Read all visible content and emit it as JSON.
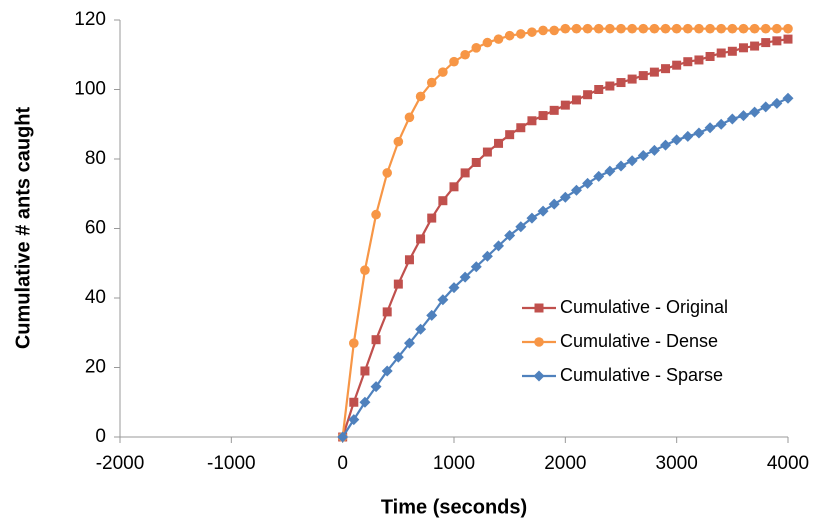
{
  "chart_data": {
    "type": "line",
    "x_label": "Time (seconds)",
    "y_label": "Cumulative # ants caught",
    "x": [
      0,
      100,
      200,
      300,
      400,
      500,
      600,
      700,
      800,
      900,
      1000,
      1100,
      1200,
      1300,
      1400,
      1500,
      1600,
      1700,
      1800,
      1900,
      2000,
      2100,
      2200,
      2300,
      2400,
      2500,
      2600,
      2700,
      2800,
      2900,
      3000,
      3100,
      3200,
      3300,
      3400,
      3500,
      3600,
      3700,
      3800,
      3900,
      4000
    ],
    "series": [
      {
        "name": "Cumulative - Original",
        "color": "#c0504d",
        "marker": "square",
        "values": [
          0,
          10,
          19,
          28,
          36,
          44,
          51,
          57,
          63,
          68,
          72,
          76,
          79,
          82,
          84.5,
          87,
          89,
          91,
          92.5,
          94,
          95.5,
          97,
          98.5,
          100,
          101,
          102,
          103,
          104,
          105,
          106,
          107,
          108,
          108.5,
          109.5,
          110.5,
          111,
          112,
          112.5,
          113.5,
          114,
          114.5
        ]
      },
      {
        "name": "Cumulative - Dense",
        "color": "#f79646",
        "marker": "circle",
        "values": [
          0,
          27,
          48,
          64,
          76,
          85,
          92,
          98,
          102,
          105,
          108,
          110,
          112,
          113.5,
          114.5,
          115.5,
          116,
          116.5,
          117,
          117,
          117.5,
          117.5,
          117.5,
          117.5,
          117.5,
          117.5,
          117.5,
          117.5,
          117.5,
          117.5,
          117.5,
          117.5,
          117.5,
          117.5,
          117.5,
          117.5,
          117.5,
          117.5,
          117.5,
          117.5,
          117.5
        ]
      },
      {
        "name": "Cumulative - Sparse",
        "color": "#4f81bd",
        "marker": "diamond",
        "values": [
          0,
          5,
          10,
          14.5,
          19,
          23,
          27,
          31,
          35,
          39.5,
          43,
          46,
          49,
          52,
          55,
          58,
          60.5,
          63,
          65,
          67,
          69,
          71,
          73,
          75,
          76.5,
          78,
          79.5,
          81,
          82.5,
          84,
          85.5,
          86.5,
          87.5,
          89,
          90,
          91.5,
          92.5,
          93.5,
          95,
          96,
          97.5
        ]
      }
    ],
    "xlim": [
      -2000,
      4000
    ],
    "xticks": [
      -2000,
      -1000,
      0,
      1000,
      2000,
      3000,
      4000
    ],
    "ylim": [
      0,
      120
    ],
    "yticks": [
      0,
      20,
      40,
      60,
      80,
      100,
      120
    ],
    "grid": false,
    "legend_position": "lower right"
  }
}
